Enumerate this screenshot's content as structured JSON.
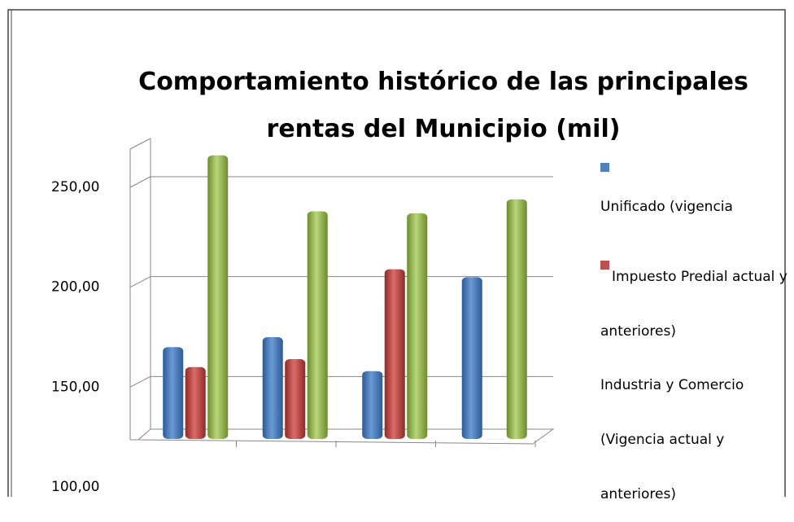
{
  "chart_data": {
    "type": "bar",
    "title": "Comportamiento histórico de las principales rentas del Municipio (mil)",
    "series": [
      {
        "name": "Unificado (vigencia",
        "color": "#4f81bd",
        "values": [
          170,
          175,
          158,
          205
        ]
      },
      {
        "name": "Impuesto Predial actual y anteriores)",
        "color": "#c0504d",
        "values": [
          160,
          164,
          209,
          124
        ]
      },
      {
        "name": "Industria y Comercio (Vigencia actual y anteriores)",
        "color": "#9bbb59",
        "values": [
          266,
          238,
          237,
          244
        ]
      }
    ],
    "ylim": [
      100,
      250
    ],
    "yticks": [
      {
        "value": 100,
        "label": "100,00"
      },
      {
        "value": 150,
        "label": "150,00"
      },
      {
        "value": 200,
        "label": "200,00"
      },
      {
        "value": 250,
        "label": "250,00"
      }
    ],
    "grid": true,
    "legend": "right"
  }
}
